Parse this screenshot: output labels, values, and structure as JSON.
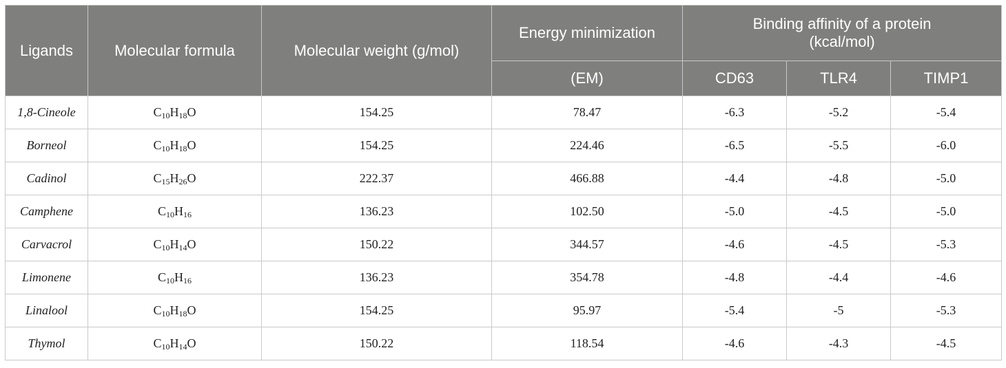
{
  "headers": {
    "ligands": "Ligands",
    "formula": "Molecular formula",
    "weight": "Molecular weight (g/mol)",
    "energy_top": "Energy minimization",
    "energy_bottom": "(EM)",
    "binding_line1": "Binding affinity of a protein",
    "binding_line2": "(kcal/mol)",
    "cd63": "CD63",
    "tlr4": "TLR4",
    "timp1": "TIMP1"
  },
  "rows": [
    {
      "ligand": "1,8-Cineole",
      "f": [
        {
          "el": "C",
          "n": "10"
        },
        {
          "el": "H",
          "n": "18"
        },
        {
          "el": "O",
          "n": ""
        }
      ],
      "mw": "154.25",
      "em": "78.47",
      "cd63": "-6.3",
      "tlr4": "-5.2",
      "timp1": "-5.4"
    },
    {
      "ligand": "Borneol",
      "f": [
        {
          "el": "C",
          "n": "10"
        },
        {
          "el": "H",
          "n": "18"
        },
        {
          "el": "O",
          "n": ""
        }
      ],
      "mw": "154.25",
      "em": "224.46",
      "cd63": "-6.5",
      "tlr4": "-5.5",
      "timp1": "-6.0"
    },
    {
      "ligand": "Cadinol",
      "f": [
        {
          "el": "C",
          "n": "15"
        },
        {
          "el": "H",
          "n": "26"
        },
        {
          "el": "O",
          "n": ""
        }
      ],
      "mw": "222.37",
      "em": "466.88",
      "cd63": "-4.4",
      "tlr4": "-4.8",
      "timp1": "-5.0"
    },
    {
      "ligand": "Camphene",
      "f": [
        {
          "el": "C",
          "n": "10"
        },
        {
          "el": "H",
          "n": "16"
        }
      ],
      "mw": "136.23",
      "em": "102.50",
      "cd63": "-5.0",
      "tlr4": "-4.5",
      "timp1": "-5.0"
    },
    {
      "ligand": "Carvacrol",
      "f": [
        {
          "el": "C",
          "n": "10"
        },
        {
          "el": "H",
          "n": "14"
        },
        {
          "el": "O",
          "n": ""
        }
      ],
      "mw": "150.22",
      "em": "344.57",
      "cd63": "-4.6",
      "tlr4": "-4.5",
      "timp1": "-5.3"
    },
    {
      "ligand": "Limonene",
      "f": [
        {
          "el": "C",
          "n": "10"
        },
        {
          "el": "H",
          "n": "16"
        }
      ],
      "mw": "136.23",
      "em": "354.78",
      "cd63": "-4.8",
      "tlr4": "-4.4",
      "timp1": "-4.6"
    },
    {
      "ligand": "Linalool",
      "f": [
        {
          "el": "C",
          "n": "10"
        },
        {
          "el": "H",
          "n": "18"
        },
        {
          "el": "O",
          "n": ""
        }
      ],
      "mw": "154.25",
      "em": "95.97",
      "cd63": "-5.4",
      "tlr4": "-5",
      "timp1": "-5.3"
    },
    {
      "ligand": "Thymol",
      "f": [
        {
          "el": "C",
          "n": "10"
        },
        {
          "el": "H",
          "n": "14"
        },
        {
          "el": "O",
          "n": ""
        }
      ],
      "mw": "150.22",
      "em": "118.54",
      "cd63": "-4.6",
      "tlr4": "-4.3",
      "timp1": "-4.5"
    }
  ]
}
